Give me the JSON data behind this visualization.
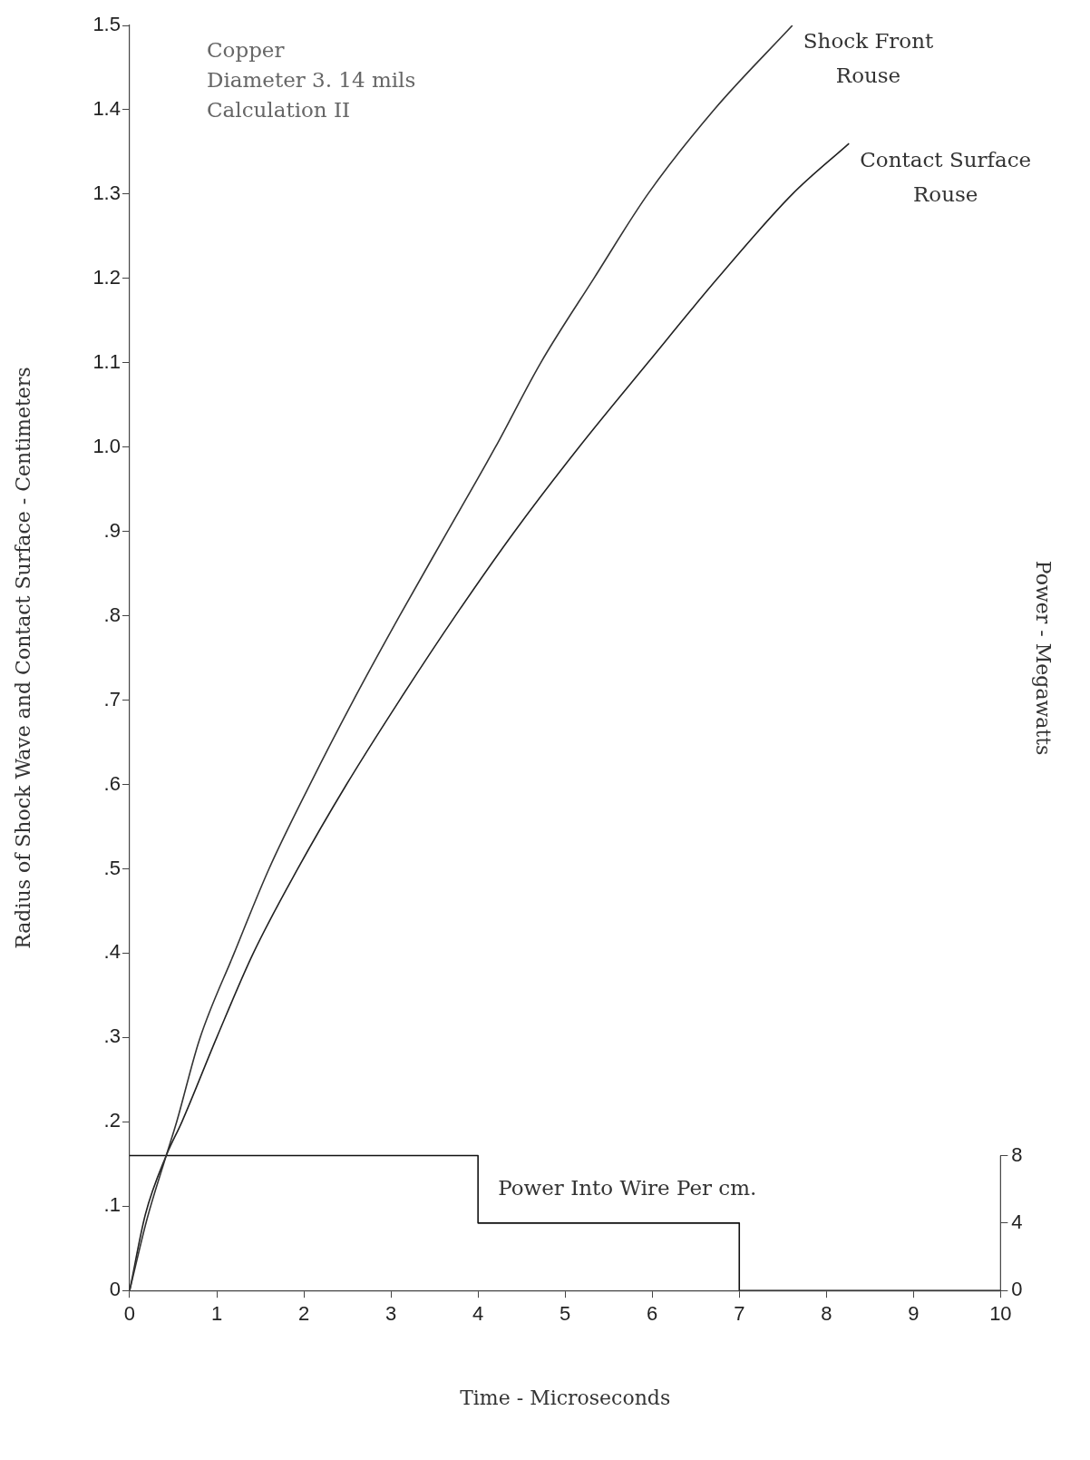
{
  "chart_data": {
    "type": "line",
    "xlabel": "Time - Microseconds",
    "ylabel": "Radius of Shock Wave and Contact Surface - Centimeters",
    "y2label": "Power - Megawatts",
    "xlim": [
      0,
      10
    ],
    "xticks": [
      0,
      1,
      2,
      3,
      4,
      5,
      6,
      7,
      8,
      9,
      10
    ],
    "ylim": [
      0,
      1.5
    ],
    "yticks": [
      0,
      {
        "value": 0.1,
        "label": ".1"
      },
      {
        "value": 0.2,
        "label": ".2"
      },
      {
        "value": 0.3,
        "label": ".3"
      },
      {
        "value": 0.4,
        "label": ".4"
      },
      {
        "value": 0.5,
        "label": ".5"
      },
      {
        "value": 0.6,
        "label": ".6"
      },
      {
        "value": 0.7,
        "label": ".7"
      },
      {
        "value": 0.8,
        "label": ".8"
      },
      {
        "value": 0.9,
        "label": ".9"
      },
      {
        "value": 1.0,
        "label": "1.0"
      },
      {
        "value": 1.1,
        "label": "1.1"
      },
      {
        "value": 1.2,
        "label": "1.2"
      },
      {
        "value": 1.3,
        "label": "1.3"
      },
      {
        "value": 1.4,
        "label": "1.4"
      },
      {
        "value": 1.5,
        "label": "1.5"
      }
    ],
    "y2lim": [
      0,
      75
    ],
    "y2ticks": [
      0,
      4,
      8
    ],
    "grid": false,
    "legend": false,
    "marker": "none",
    "line_style": "solid",
    "annotations": [
      "Copper",
      "Diameter 3. 14 mils",
      "Calculation II"
    ],
    "series": [
      {
        "name": "Shock Front Rouse",
        "color": "#333333",
        "x": [
          0,
          0.2,
          0.42,
          0.54,
          0.8,
          1.2,
          1.6,
          2.07,
          2.57,
          3.1,
          3.65,
          4.2,
          4.72,
          5.33,
          5.95,
          6.71,
          7.61
        ],
        "values": [
          0,
          0.085,
          0.16,
          0.2,
          0.297,
          0.4,
          0.5,
          0.6,
          0.7,
          0.8,
          0.9,
          1.0,
          1.1,
          1.2,
          1.3,
          1.4,
          1.5
        ]
      },
      {
        "name": "Contact Surface Rouse",
        "color": "#222222",
        "x": [
          0,
          0.18,
          0.42,
          0.6,
          1.0,
          1.42,
          1.93,
          2.49,
          3.1,
          3.74,
          4.42,
          5.16,
          5.95,
          6.75,
          7.61,
          8.26
        ],
        "values": [
          0,
          0.09,
          0.16,
          0.2,
          0.3,
          0.4,
          0.5,
          0.6,
          0.7,
          0.8,
          0.9,
          1.0,
          1.1,
          1.2,
          1.3,
          1.36
        ]
      },
      {
        "name": "Power Into Wire Per cm.",
        "type": "step",
        "axis": "y2",
        "color": "#111111",
        "x": [
          0,
          4,
          7,
          10
        ],
        "values": [
          8,
          4,
          0,
          0
        ]
      }
    ]
  }
}
